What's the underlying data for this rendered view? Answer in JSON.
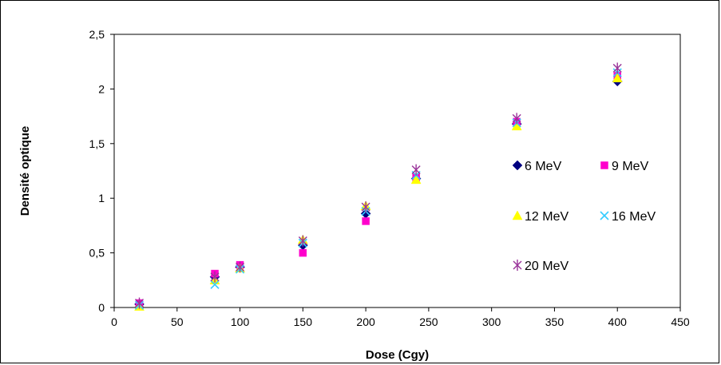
{
  "chart_data": {
    "type": "scatter",
    "title": "",
    "xlabel": "Dose (Cgy)",
    "ylabel": "Densité optique",
    "xlim": [
      0,
      450
    ],
    "ylim": [
      0,
      2.5
    ],
    "x_ticks": [
      "0",
      "50",
      "100",
      "150",
      "200",
      "250",
      "300",
      "350",
      "400",
      "450"
    ],
    "y_ticks": [
      "0",
      "0,5",
      "1",
      "1,5",
      "2",
      "2,5"
    ],
    "grid": false,
    "legend_position": "right-inside",
    "x": [
      20,
      80,
      100,
      150,
      200,
      240,
      320,
      400
    ],
    "series": [
      {
        "name": "6 MeV",
        "marker": "diamond",
        "color": "#000080",
        "values": [
          0.03,
          0.28,
          0.37,
          0.57,
          0.86,
          1.18,
          1.68,
          2.07
        ]
      },
      {
        "name": "9 MeV",
        "marker": "square",
        "color": "#ff00cc",
        "values": [
          0.04,
          0.31,
          0.39,
          0.5,
          0.79,
          1.19,
          1.7,
          2.12
        ]
      },
      {
        "name": "12 MeV",
        "marker": "triangle",
        "color": "#ffff00",
        "values": [
          0.01,
          0.25,
          0.36,
          0.62,
          0.93,
          1.17,
          1.66,
          2.1
        ]
      },
      {
        "name": "16 MeV",
        "marker": "x",
        "color": "#33ccff",
        "values": [
          0.02,
          0.21,
          0.35,
          0.59,
          0.88,
          1.21,
          1.69,
          2.15
        ]
      },
      {
        "name": "20 MeV",
        "marker": "star",
        "color": "#993399",
        "values": [
          0.04,
          0.28,
          0.37,
          0.61,
          0.92,
          1.26,
          1.73,
          2.19
        ]
      }
    ]
  }
}
